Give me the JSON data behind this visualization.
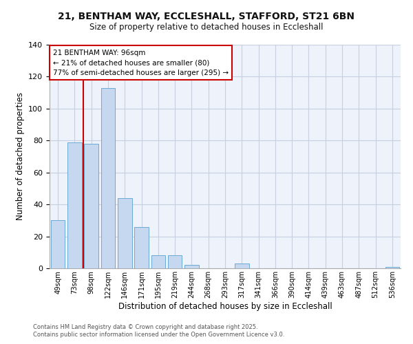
{
  "title": "21, BENTHAM WAY, ECCLESHALL, STAFFORD, ST21 6BN",
  "subtitle": "Size of property relative to detached houses in Eccleshall",
  "xlabel": "Distribution of detached houses by size in Eccleshall",
  "ylabel": "Number of detached properties",
  "bar_labels": [
    "49sqm",
    "73sqm",
    "98sqm",
    "122sqm",
    "146sqm",
    "171sqm",
    "195sqm",
    "219sqm",
    "244sqm",
    "268sqm",
    "293sqm",
    "317sqm",
    "341sqm",
    "366sqm",
    "390sqm",
    "414sqm",
    "439sqm",
    "463sqm",
    "487sqm",
    "512sqm",
    "536sqm"
  ],
  "bar_values": [
    30,
    79,
    78,
    113,
    44,
    26,
    8,
    8,
    2,
    0,
    0,
    3,
    0,
    0,
    0,
    0,
    0,
    0,
    0,
    0,
    1
  ],
  "bar_color": "#c5d8f0",
  "bar_edgecolor": "#6aaad4",
  "ylim": [
    0,
    140
  ],
  "yticks": [
    0,
    20,
    40,
    60,
    80,
    100,
    120,
    140
  ],
  "vline_color": "#cc0000",
  "annotation_title": "21 BENTHAM WAY: 96sqm",
  "annotation_line1": "← 21% of detached houses are smaller (80)",
  "annotation_line2": "77% of semi-detached houses are larger (295) →",
  "annotation_box_color": "#ffffff",
  "annotation_box_edgecolor": "#cc0000",
  "footer1": "Contains HM Land Registry data © Crown copyright and database right 2025.",
  "footer2": "Contains public sector information licensed under the Open Government Licence v3.0.",
  "background_color": "#ffffff",
  "axes_bg_color": "#edf2fb",
  "grid_color": "#c8d0e0"
}
